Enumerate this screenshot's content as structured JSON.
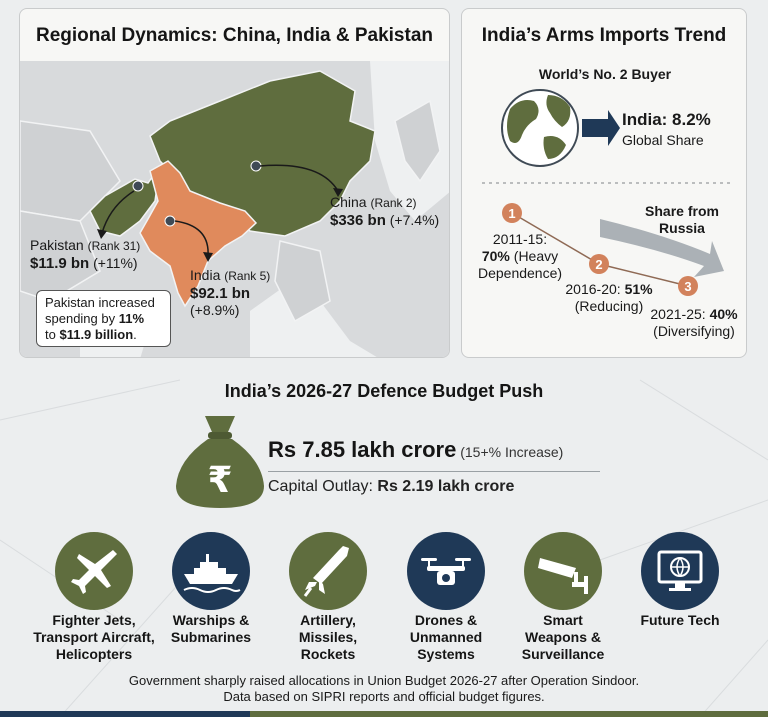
{
  "colors": {
    "olive": "#5f6d3e",
    "navy": "#1f3957",
    "india_orange": "#e08a5c",
    "step_orange": "#d2825c"
  },
  "map_panel": {
    "title": "Regional Dynamics: China, India & Pakistan",
    "china": {
      "name": "China",
      "rank": "(Rank 2)",
      "amount": "$336 bn",
      "change": "(+7.4%)"
    },
    "pakistan": {
      "name": "Pakistan",
      "rank": "(Rank 31)",
      "amount": "$11.9 bn",
      "change": "(+11%)"
    },
    "india": {
      "name": "India",
      "rank": "(Rank 5)",
      "amount": "$92.1 bn",
      "change": "(+8.9%)"
    },
    "note": {
      "line1": "Pakistan increased spending by ",
      "pct": "11%",
      "line2": "to ",
      "amount": "$11.9 billion",
      "end": "."
    }
  },
  "imports_panel": {
    "title": "India’s Arms Imports Trend",
    "buyer_label": "World’s No. 2 Buyer",
    "share_value": "India: 8.2%",
    "share_label": "Global Share",
    "russia_label_1": "Share from",
    "russia_label_2": "Russia",
    "steps": [
      {
        "num": "1",
        "period": "2011-15:",
        "pct": "70%",
        "desc1": "(Heavy",
        "desc2": "Dependence)"
      },
      {
        "num": "2",
        "period": "2016-20:",
        "pct": "51%",
        "desc1": "(Reducing)"
      },
      {
        "num": "3",
        "period": "2021-25:",
        "pct": "40%",
        "desc1": "(Diversifying)"
      }
    ]
  },
  "budget": {
    "title": "India’s 2026-27 Defence Budget Push",
    "currency_symbol": "₹",
    "total": "Rs 7.85 lakh crore",
    "increase": "(15+% Increase)",
    "capital_label": "Capital Outlay:",
    "capital_value": "Rs 2.19 lakh crore"
  },
  "categories": [
    {
      "icon": "fighter-jet-icon",
      "lines": [
        "Fighter Jets,",
        "Transport Aircraft,",
        "Helicopters"
      ]
    },
    {
      "icon": "warship-icon",
      "lines": [
        "Warships &",
        "Submarines"
      ]
    },
    {
      "icon": "missile-icon",
      "lines": [
        "Artillery,",
        "Missiles,",
        "Rockets"
      ]
    },
    {
      "icon": "drone-icon",
      "lines": [
        "Drones &",
        "Unmanned",
        "Systems"
      ]
    },
    {
      "icon": "surveillance-camera-icon",
      "lines": [
        "Smart",
        "Weapons &",
        "Surveillance"
      ]
    },
    {
      "icon": "future-tech-icon",
      "lines": [
        "Future Tech"
      ]
    }
  ],
  "footer": {
    "line1": "Government sharply raised allocations in Union Budget 2026-27 after Operation Sindoor.",
    "line2": "Data based on SIPRI reports and official budget figures."
  }
}
